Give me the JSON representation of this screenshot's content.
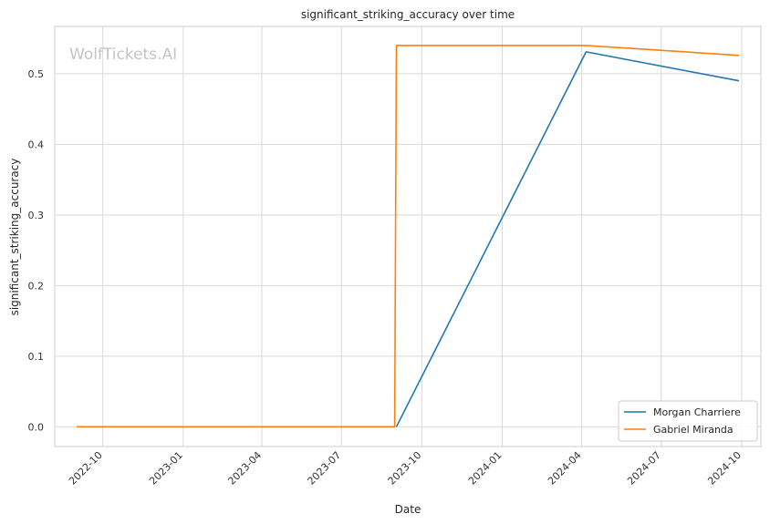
{
  "chart_data": {
    "type": "line",
    "title": "significant_striking_accuracy over time",
    "xlabel": "Date",
    "ylabel": "significant_striking_accuracy",
    "watermark": "WolfTickets.AI",
    "grid": true,
    "legend_position": "bottom-right",
    "xlim": [
      "2022-08-07",
      "2024-10-23"
    ],
    "ylim": [
      -0.028,
      0.567
    ],
    "x_ticks": [
      "2022-10",
      "2023-01",
      "2023-04",
      "2023-07",
      "2023-10",
      "2024-01",
      "2024-04",
      "2024-07",
      "2024-10"
    ],
    "y_ticks": [
      "0.0",
      "0.1",
      "0.2",
      "0.3",
      "0.4",
      "0.5"
    ],
    "series": [
      {
        "name": "Morgan Charriere",
        "color": "#1f77b4",
        "x": [
          "2023-09-02",
          "2024-04-06",
          "2024-09-28"
        ],
        "y": [
          0.0,
          0.531,
          0.49
        ]
      },
      {
        "name": "Gabriel Miranda",
        "color": "#ff7f0e",
        "x": [
          "2022-09-01",
          "2023-08-31",
          "2023-09-02",
          "2024-04-06",
          "2024-09-28"
        ],
        "y": [
          0.0,
          0.0,
          0.54,
          0.54,
          0.526
        ]
      }
    ]
  }
}
